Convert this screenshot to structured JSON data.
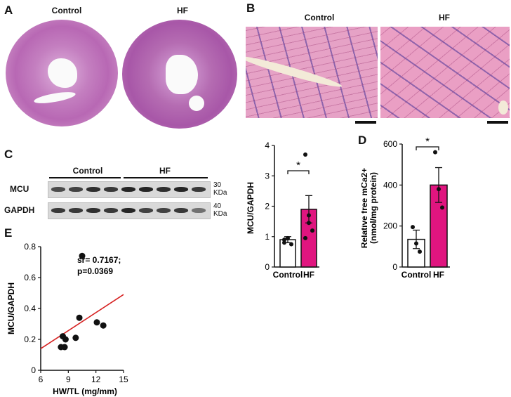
{
  "panels": {
    "A": {
      "letter": "A",
      "labels": [
        "Control",
        "HF"
      ]
    },
    "B": {
      "letter": "B",
      "labels": [
        "Control",
        "HF"
      ]
    },
    "C": {
      "letter": "C",
      "group_labels": [
        "Control",
        "HF"
      ],
      "rows": [
        {
          "name": "MCU",
          "kda": [
            "30",
            "KDa"
          ],
          "intensity": [
            0.75,
            0.8,
            0.9,
            0.85,
            0.95,
            0.95,
            0.9,
            0.95,
            0.85
          ]
        },
        {
          "name": "GAPDH",
          "kda": [
            "40",
            "KDa"
          ],
          "intensity": [
            0.85,
            0.85,
            0.9,
            0.85,
            0.95,
            0.8,
            0.8,
            0.85,
            0.55
          ]
        }
      ]
    },
    "D": {
      "letter": "D"
    },
    "E": {
      "letter": "E"
    }
  },
  "colors": {
    "hf_bar": "#e0157f",
    "control_bar": "#ffffff",
    "regression": "#d62020",
    "he_stain": "#e69ac3"
  },
  "chart_data": [
    {
      "id": "C-bar",
      "type": "bar",
      "categories": [
        "Control",
        "HF"
      ],
      "values": [
        0.9,
        1.9
      ],
      "errors": [
        0.1,
        0.45
      ],
      "points": [
        [
          0.8,
          0.95,
          0.75,
          0.9
        ],
        [
          3.7,
          1.45,
          1.2,
          0.95,
          1.7
        ]
      ],
      "ylabel": "MCU/GAPDH",
      "ylim": [
        0,
        4
      ],
      "yticks": [
        0,
        1,
        2,
        3,
        4
      ],
      "significance": "*"
    },
    {
      "id": "D-bar",
      "type": "bar",
      "categories": [
        "Control",
        "HF"
      ],
      "values": [
        135,
        400
      ],
      "errors": [
        45,
        85
      ],
      "points": [
        [
          195,
          115,
          75
        ],
        [
          560,
          380,
          290
        ]
      ],
      "ylabel": "Relative free mCa2+",
      "ylabel2": "(nmol/mg protein)",
      "ylim": [
        0,
        600
      ],
      "yticks": [
        0,
        200,
        400,
        600
      ],
      "significance": "*"
    },
    {
      "id": "E-scatter",
      "type": "scatter",
      "x": [
        8.2,
        8.4,
        8.6,
        8.7,
        9.8,
        10.2,
        10.5,
        12.1,
        12.8
      ],
      "y": [
        0.15,
        0.22,
        0.15,
        0.2,
        0.21,
        0.34,
        0.74,
        0.31,
        0.29
      ],
      "xlabel": "HW/TL (mg/mm)",
      "ylabel": "MCU/GAPDH",
      "xlim": [
        6,
        15
      ],
      "ylim": [
        0,
        0.8
      ],
      "xticks": [
        6,
        9,
        12,
        15
      ],
      "yticks": [
        0,
        0.2,
        0.4,
        0.6,
        0.8
      ],
      "annotation": [
        "sr= 0.7167;",
        "p=0.0369"
      ],
      "fit": {
        "x": [
          6,
          15
        ],
        "y": [
          0.14,
          0.49
        ]
      }
    }
  ]
}
